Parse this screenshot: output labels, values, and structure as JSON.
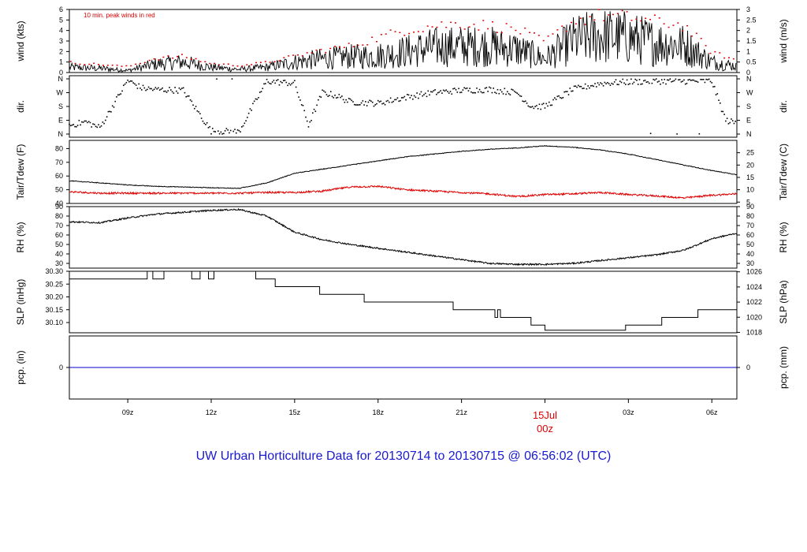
{
  "title": "UW Urban Horticulture Data for 20130714  to  20130715 @ 06:56:02  (UTC)",
  "colors": {
    "peak": "#e00000",
    "dewpoint": "#e00000",
    "precip": "#0000cc",
    "title": "#1a1ad0",
    "date_label": "#e00000",
    "line": "#000000"
  },
  "x_axis": {
    "tick_labels": [
      "09z",
      "12z",
      "15z",
      "18z",
      "21z",
      "03z",
      "06z"
    ],
    "date_label": "15Jul",
    "date_sub_label": "00z"
  },
  "chart_data": [
    {
      "type": "line",
      "panel": "wind",
      "ylabel_left": "wind (kts)",
      "ylabel_right": "wind (m/s)",
      "ylim": [
        0,
        6
      ],
      "yticks_left": [
        "0",
        "1",
        "2",
        "3",
        "4",
        "5",
        "6"
      ],
      "yticks_right": [
        "0",
        "0.5",
        "1",
        "1.5",
        "2",
        "2.5",
        "3"
      ],
      "annotation": "10 min. peak winds in red",
      "x_hours": [
        6.9,
        8,
        9,
        10,
        11,
        12,
        13,
        14,
        15,
        16,
        17,
        18,
        19,
        20,
        21,
        22,
        23,
        24,
        25,
        26,
        27,
        28,
        29,
        30,
        30.9
      ],
      "series": [
        {
          "values": [
            0.5,
            0.4,
            0.2,
            0.8,
            1.0,
            0.5,
            0.3,
            0.5,
            1.0,
            1.3,
            1.5,
            1.6,
            2.0,
            2.4,
            2.5,
            2.5,
            2.2,
            1.3,
            3.0,
            3.5,
            3.3,
            2.8,
            2.6,
            1.0,
            0.6
          ]
        },
        {
          "values": [
            1.0,
            0.8,
            0.6,
            1.4,
            1.6,
            0.9,
            0.7,
            1.0,
            1.6,
            2.2,
            2.6,
            3.4,
            4.2,
            4.6,
            4.8,
            4.6,
            4.2,
            3.0,
            5.0,
            5.6,
            5.4,
            5.0,
            4.6,
            2.0,
            1.2
          ]
        }
      ]
    },
    {
      "type": "scatter",
      "panel": "direction",
      "ylabel_left": "dir.",
      "ylabel_right": "dir.",
      "yticks_left": [
        "N",
        "E",
        "S",
        "W",
        "N"
      ],
      "yticks_right": [
        "N",
        "E",
        "S",
        "W",
        "N"
      ],
      "ylim": [
        0,
        360
      ],
      "x_hours": [
        7,
        7.5,
        8,
        9,
        9.5,
        10,
        11,
        12,
        13,
        14,
        15,
        15.5,
        16,
        16.5,
        17,
        18,
        19,
        20,
        21,
        22,
        23,
        23.5,
        24,
        25,
        26,
        27,
        28,
        29,
        30,
        30.5,
        30.9
      ],
      "values": [
        60,
        80,
        40,
        350,
        300,
        290,
        285,
        20,
        15,
        345,
        330,
        60,
        270,
        250,
        210,
        200,
        240,
        270,
        285,
        290,
        270,
        180,
        180,
        290,
        330,
        340,
        345,
        345,
        345,
        90,
        70
      ]
    },
    {
      "type": "line",
      "panel": "temperature",
      "ylabel_left": "Tair/Tdew (F)",
      "ylabel_right": "Tair/Tdew (C)",
      "ylim": [
        40,
        86
      ],
      "yticks_left": [
        "40",
        "50",
        "60",
        "70",
        "80"
      ],
      "yticks_right": [
        "5",
        "10",
        "15",
        "20",
        "25"
      ],
      "x_hours": [
        6.9,
        8,
        9,
        10,
        11,
        12,
        13,
        14,
        15,
        16,
        17,
        18,
        19,
        20,
        21,
        22,
        23,
        24,
        25,
        26,
        27,
        28,
        29,
        30,
        30.9
      ],
      "series": [
        {
          "name": "Tair",
          "values": [
            56.5,
            55,
            53.5,
            52.5,
            52,
            51.5,
            51,
            55,
            62,
            65,
            68,
            71,
            74,
            76,
            78,
            79.5,
            80.5,
            82,
            81,
            79,
            76,
            72,
            68,
            64,
            61
          ]
        },
        {
          "name": "Tdew",
          "values": [
            48.5,
            47.5,
            47.5,
            47.5,
            47.5,
            47.5,
            47.5,
            48,
            48,
            49,
            52,
            52.5,
            50,
            49,
            48,
            47,
            45,
            46.5,
            47,
            48,
            46.5,
            45.5,
            44,
            46,
            47
          ]
        }
      ]
    },
    {
      "type": "line",
      "panel": "humidity",
      "ylabel_left": "RH (%)",
      "ylabel_right": "RH (%)",
      "ylim": [
        25,
        90
      ],
      "yticks_left": [
        "30",
        "40",
        "50",
        "60",
        "70",
        "80",
        "90"
      ],
      "yticks_right": [
        "30",
        "40",
        "50",
        "60",
        "70",
        "80",
        "90"
      ],
      "x_hours": [
        6.9,
        8,
        9,
        10,
        11,
        12,
        13,
        14,
        15,
        16,
        17,
        18,
        19,
        20,
        21,
        22,
        23,
        24,
        25,
        26,
        27,
        28,
        29,
        30,
        30.9
      ],
      "values": [
        74,
        73,
        78,
        82,
        84,
        86,
        87,
        80,
        63,
        55,
        50,
        46,
        42,
        38,
        34,
        30,
        29,
        29,
        30,
        33,
        36,
        39,
        44,
        56,
        62
      ]
    },
    {
      "type": "line",
      "panel": "pressure",
      "step": true,
      "ylabel_left": "SLP (inHg)",
      "ylabel_right": "SLP (hPa)",
      "ylim": [
        30.06,
        30.3
      ],
      "yticks_left": [
        "30.10",
        "30.15",
        "30.20",
        "30.25",
        "30.30"
      ],
      "yticks_right": [
        "1018",
        "1020",
        "1022",
        "1024",
        "1026"
      ],
      "x_hours": [
        6.9,
        9.7,
        9.9,
        10.3,
        11.3,
        11.6,
        11.9,
        12.1,
        13.6,
        14.3,
        15.9,
        17.5,
        19.0,
        20.7,
        22.2,
        22.3,
        22.4,
        23.5,
        24.0,
        26.9,
        28.2,
        29.5
      ],
      "values": [
        30.27,
        30.3,
        30.27,
        30.3,
        30.27,
        30.3,
        30.27,
        30.3,
        30.27,
        30.24,
        30.21,
        30.18,
        30.18,
        30.15,
        30.12,
        30.15,
        30.12,
        30.09,
        30.07,
        30.09,
        30.12,
        30.15
      ]
    },
    {
      "type": "line",
      "panel": "precipitation",
      "ylabel_left": "pcp. (in)",
      "ylabel_right": "pcp. (mm)",
      "yticks_left": [
        "0"
      ],
      "yticks_right": [
        "0"
      ],
      "ylim": [
        -1,
        1
      ],
      "x_hours": [
        6.9,
        30.9
      ],
      "values": [
        0,
        0
      ]
    }
  ]
}
